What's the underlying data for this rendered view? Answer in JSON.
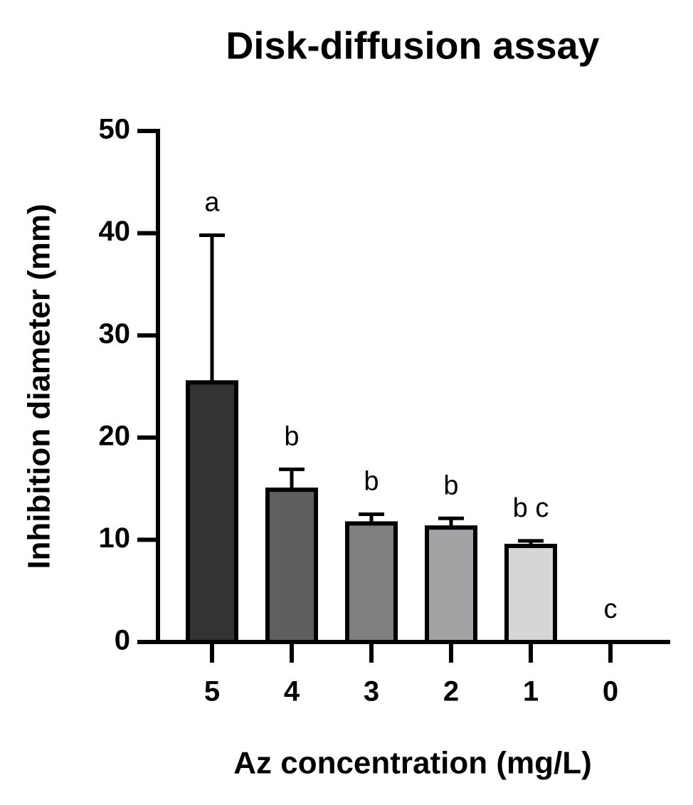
{
  "chart_data": {
    "type": "bar",
    "title": "Disk-diffusion assay",
    "x_label": "Az concentration (mg/L)",
    "y_label": "Inhibition diameter (mm)",
    "categories": [
      "5",
      "4",
      "3",
      "2",
      "1",
      "0"
    ],
    "values": [
      25.4,
      14.9,
      11.6,
      11.2,
      9.4,
      0
    ],
    "errors": [
      14.4,
      2.0,
      0.9,
      0.9,
      0.5,
      0
    ],
    "letters": [
      "a",
      "b",
      "b",
      "b",
      "b c",
      "c"
    ],
    "colors": [
      "#333333",
      "#5f5f5f",
      "#7f7f7f",
      "#a3a3a6",
      "#d6d6d6",
      "#ffffff"
    ],
    "ylim": [
      0,
      50
    ],
    "yticks": [
      0,
      10,
      20,
      30,
      40,
      50
    ]
  }
}
